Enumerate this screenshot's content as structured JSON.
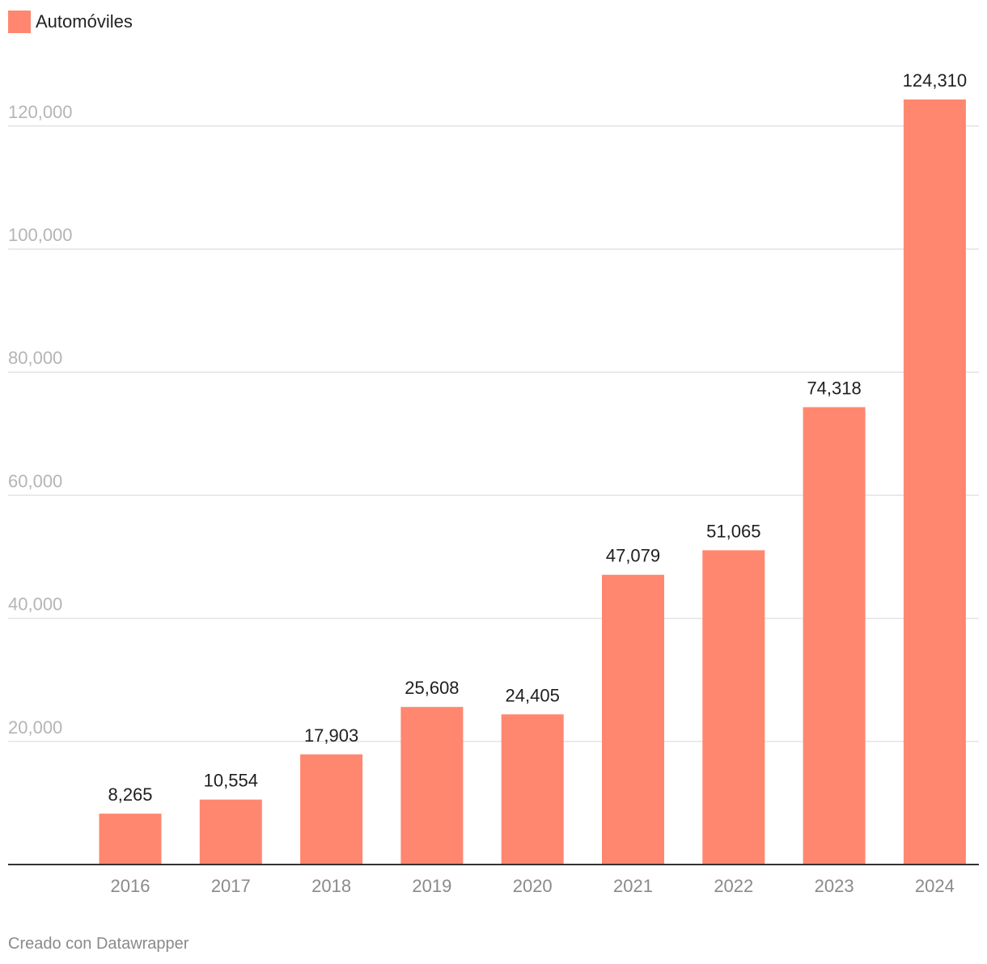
{
  "colors": {
    "bar": "#ff8770",
    "grid": "#e3e3e3",
    "axis": "#333333"
  },
  "legend": {
    "label": "Automóviles"
  },
  "credit": "Creado con Datawrapper",
  "chart_data": {
    "type": "bar",
    "title": "",
    "xlabel": "",
    "ylabel": "",
    "ylim": [
      0,
      130000
    ],
    "yticks": [
      20000,
      40000,
      60000,
      80000,
      100000,
      120000
    ],
    "ytick_labels": [
      "20,000",
      "40,000",
      "60,000",
      "80,000",
      "100,000",
      "120,000"
    ],
    "categories": [
      "2016",
      "2017",
      "2018",
      "2019",
      "2020",
      "2021",
      "2022",
      "2023",
      "2024"
    ],
    "series": [
      {
        "name": "Automóviles",
        "values": [
          8265,
          10554,
          17903,
          25608,
          24405,
          47079,
          51065,
          74318,
          124310
        ],
        "labels": [
          "8,265",
          "10,554",
          "17,903",
          "25,608",
          "24,405",
          "47,079",
          "51,065",
          "74,318",
          "124,310"
        ]
      }
    ]
  }
}
